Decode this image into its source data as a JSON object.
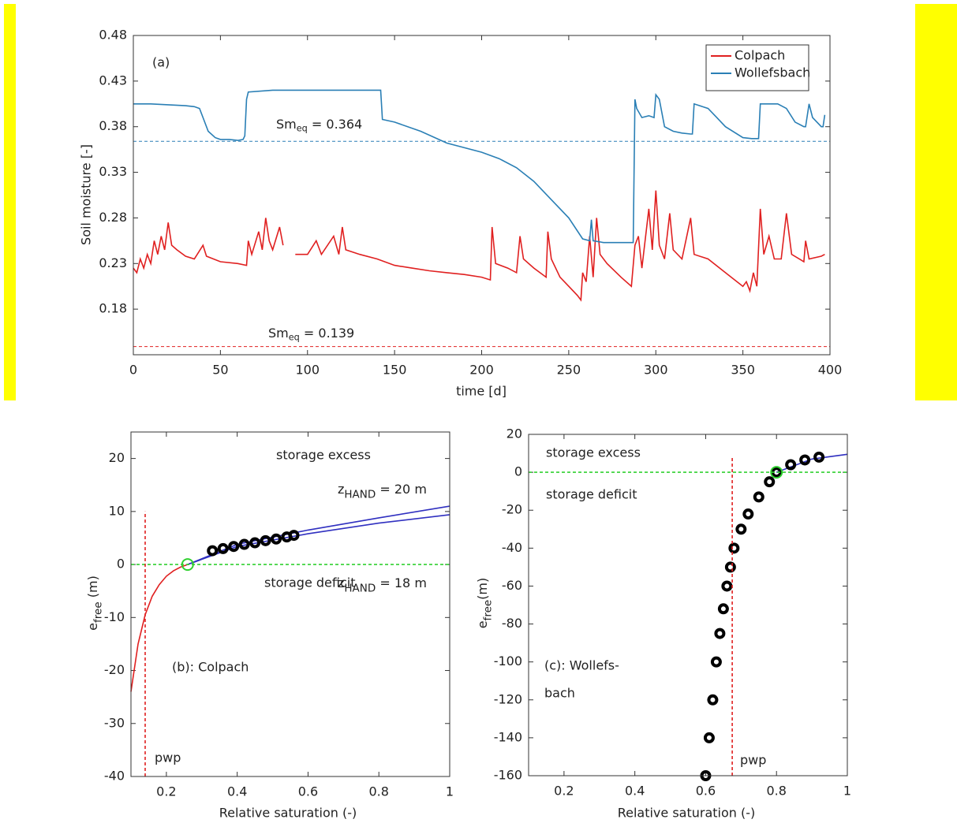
{
  "chart_data": [
    {
      "type": "line",
      "panel_label": "(a)",
      "x_label": "time [d]",
      "y_label": "Soil moisture [-]",
      "xlim": [
        0,
        400
      ],
      "xticks": [
        0,
        50,
        100,
        150,
        200,
        250,
        300,
        350,
        400
      ],
      "ylim": [
        0.13,
        0.48
      ],
      "yticks": [
        0.18,
        0.23,
        0.28,
        0.33,
        0.38,
        0.43,
        0.48
      ],
      "legend": "upper right",
      "series": [
        {
          "name": "Colpach",
          "color": "#e02020",
          "x": [
            0,
            2,
            4,
            6,
            8,
            10,
            12,
            14,
            16,
            18,
            20,
            22,
            25,
            30,
            35,
            40,
            42,
            50,
            60,
            65,
            66,
            68,
            72,
            74,
            76,
            78,
            80,
            84,
            86,
            89,
            93,
            100,
            105,
            108,
            115,
            118,
            120,
            122,
            130,
            140,
            150,
            160,
            170,
            180,
            190,
            200,
            205,
            206,
            208,
            215,
            220,
            222,
            224,
            230,
            237,
            238,
            240,
            245,
            250,
            255,
            257,
            258,
            260,
            262,
            264,
            266,
            268,
            272,
            280,
            286,
            288,
            290,
            292,
            296,
            298,
            300,
            302,
            305,
            308,
            310,
            315,
            320,
            322,
            330,
            340,
            350,
            352,
            354,
            356,
            358,
            360,
            362,
            365,
            368,
            372,
            375,
            378,
            385,
            386,
            388,
            395,
            397
          ],
          "values": [
            0.225,
            0.22,
            0.235,
            0.225,
            0.24,
            0.23,
            0.255,
            0.24,
            0.26,
            0.245,
            0.275,
            0.25,
            0.245,
            0.238,
            0.235,
            0.25,
            0.238,
            0.232,
            0.23,
            0.228,
            0.255,
            0.24,
            0.265,
            0.245,
            0.28,
            0.255,
            0.245,
            0.27,
            0.25,
            null,
            0.24,
            0.24,
            0.255,
            0.24,
            0.26,
            0.24,
            0.27,
            0.245,
            0.24,
            0.235,
            0.228,
            0.225,
            0.222,
            0.22,
            0.218,
            0.215,
            0.212,
            0.27,
            0.23,
            0.225,
            0.22,
            0.26,
            0.235,
            0.225,
            0.215,
            0.265,
            0.235,
            0.215,
            0.205,
            0.195,
            0.19,
            0.22,
            0.21,
            0.26,
            0.215,
            0.28,
            0.24,
            0.23,
            0.215,
            0.205,
            0.25,
            0.26,
            0.225,
            0.29,
            0.245,
            0.31,
            0.25,
            0.235,
            0.285,
            0.245,
            0.235,
            0.28,
            0.24,
            0.235,
            0.22,
            0.205,
            0.21,
            0.2,
            0.22,
            0.205,
            0.29,
            0.24,
            0.26,
            0.235,
            0.235,
            0.285,
            0.24,
            0.232,
            0.255,
            0.235,
            0.238,
            0.24
          ]
        },
        {
          "name": "Wollefsbach",
          "color": "#2a7fb5",
          "x": [
            0,
            10,
            20,
            30,
            35,
            38,
            40,
            43,
            47,
            50,
            55,
            60,
            63,
            64,
            65,
            66,
            80,
            90,
            100,
            120,
            140,
            142,
            143,
            150,
            165,
            180,
            200,
            210,
            220,
            230,
            240,
            250,
            258,
            262,
            263,
            264,
            270,
            280,
            287,
            288,
            289,
            292,
            296,
            299,
            300,
            302,
            305,
            310,
            315,
            320,
            321,
            322,
            330,
            335,
            340,
            350,
            355,
            358,
            359,
            360,
            370,
            375,
            380,
            385,
            386,
            388,
            390,
            395,
            396,
            397
          ],
          "values": [
            0.405,
            0.405,
            0.404,
            0.403,
            0.402,
            0.4,
            0.39,
            0.375,
            0.368,
            0.366,
            0.366,
            0.365,
            0.366,
            0.37,
            0.41,
            0.418,
            0.42,
            0.42,
            0.42,
            0.42,
            0.42,
            0.42,
            0.388,
            0.385,
            0.375,
            0.362,
            0.352,
            0.345,
            0.335,
            0.32,
            0.3,
            0.28,
            0.257,
            0.255,
            0.278,
            0.255,
            0.253,
            0.253,
            0.253,
            0.41,
            0.4,
            0.39,
            0.392,
            0.39,
            0.415,
            0.41,
            0.38,
            0.375,
            0.373,
            0.372,
            0.372,
            0.405,
            0.4,
            0.39,
            0.38,
            0.368,
            0.367,
            0.367,
            0.367,
            0.405,
            0.405,
            0.4,
            0.385,
            0.38,
            0.38,
            0.405,
            0.39,
            0.38,
            0.38,
            0.393
          ]
        }
      ],
      "reference_lines": [
        {
          "value": 0.364,
          "color": "#2a7fb5",
          "label": {
            "main": "Sm",
            "sub": "eq",
            "tail": " = 0.364"
          }
        },
        {
          "value": 0.139,
          "color": "#e02020",
          "label": {
            "main": "Sm",
            "sub": "eq",
            "tail": " = 0.139"
          }
        }
      ]
    },
    {
      "type": "line",
      "x_label": "Relative saturation (-)",
      "y_label": {
        "main": "e",
        "sub": "free",
        "tail": " (m)"
      },
      "xlim": [
        0.1,
        1
      ],
      "xticks": [
        0.2,
        0.4,
        0.6,
        0.8,
        1
      ],
      "ylim": [
        -40,
        25
      ],
      "yticks": [
        -40,
        -30,
        -20,
        -10,
        0,
        10,
        20
      ],
      "series": [
        {
          "color": "#e02020",
          "x": [
            0.1,
            0.12,
            0.14,
            0.16,
            0.18,
            0.2,
            0.22,
            0.24,
            0.26
          ],
          "values": [
            -24,
            -15,
            -9.5,
            -6,
            -3.8,
            -2.2,
            -1.2,
            -0.5,
            0
          ]
        },
        {
          "color": "#3030c0",
          "x": [
            0.26,
            0.4,
            0.6,
            0.8,
            1
          ],
          "values": [
            0,
            3.8,
            6.5,
            8.8,
            11
          ]
        },
        {
          "color": "#3030c0",
          "x": [
            0.26,
            0.4,
            0.6,
            0.8,
            1
          ],
          "values": [
            0,
            3.4,
            5.8,
            7.8,
            9.4
          ]
        },
        {
          "color": "#000000",
          "markers": true,
          "x": [
            0.33,
            0.36,
            0.39,
            0.42,
            0.45,
            0.48,
            0.51,
            0.54,
            0.56
          ],
          "values": [
            2.6,
            3.0,
            3.4,
            3.8,
            4.1,
            4.5,
            4.8,
            5.2,
            5.5
          ]
        },
        {
          "color": "#30d030",
          "dashed": true,
          "x": [
            0.1,
            1
          ],
          "values": [
            0,
            0
          ]
        },
        {
          "color": "#e02020",
          "dashed": true,
          "x": [
            0.14,
            0.14
          ],
          "values": [
            -40,
            10
          ]
        },
        {
          "color": "#30d030",
          "markers": true,
          "x": [
            0.26
          ],
          "values": [
            0
          ]
        }
      ],
      "annotations": [
        {
          "text": "storage excess",
          "color": "#2a7fb5"
        },
        {
          "text": "storage deficit",
          "color": "#e02020"
        },
        {
          "text": {
            "main": "z",
            "sub": "HAND",
            "tail": " = 20 m"
          },
          "color": "#000000"
        },
        {
          "text": {
            "main": "z",
            "sub": "HAND",
            "tail": " = 18 m"
          },
          "color": "#000000"
        },
        {
          "text": "(b): Colpach",
          "color": "#000000"
        },
        {
          "text": "pwp",
          "color": "#000000"
        }
      ]
    },
    {
      "type": "line",
      "x_label": "Relative saturation (-)",
      "y_label": {
        "main": "e",
        "sub": "free",
        "tail": "(m)"
      },
      "xlim": [
        0.1,
        1
      ],
      "xticks": [
        0.2,
        0.4,
        0.6,
        0.8,
        1
      ],
      "ylim": [
        -160,
        20
      ],
      "yticks": [
        -160,
        -140,
        -120,
        -100,
        -80,
        -60,
        -40,
        -20,
        0,
        20
      ],
      "series": [
        {
          "color": "#3030c0",
          "x": [
            0.8,
            0.9,
            1
          ],
          "values": [
            0,
            7,
            9.5
          ]
        },
        {
          "color": "#000000",
          "markers": true,
          "x": [
            0.6,
            0.61,
            0.62,
            0.63,
            0.64,
            0.65,
            0.66,
            0.67,
            0.68,
            0.7,
            0.72,
            0.75,
            0.78,
            0.8,
            0.84,
            0.88,
            0.92
          ],
          "values": [
            -160,
            -140,
            -120,
            -100,
            -85,
            -72,
            -60,
            -50,
            -40,
            -30,
            -22,
            -13,
            -5,
            0,
            4,
            6.5,
            8
          ]
        },
        {
          "color": "#30d030",
          "dashed": true,
          "x": [
            0.1,
            1
          ],
          "values": [
            0,
            0
          ]
        },
        {
          "color": "#e02020",
          "dashed": true,
          "x": [
            0.675,
            0.675
          ],
          "values": [
            -160,
            8
          ]
        },
        {
          "color": "#30d030",
          "markers": true,
          "x": [
            0.8
          ],
          "values": [
            0
          ]
        }
      ],
      "annotations": [
        {
          "text": "storage excess",
          "color": "#2a7fb5"
        },
        {
          "text": "storage deficit",
          "color": "#e02020"
        },
        {
          "text": "(c): Wollefs-",
          "color": "#000000"
        },
        {
          "text": "bach",
          "color": "#000000"
        },
        {
          "text": "pwp",
          "color": "#000000"
        }
      ]
    }
  ]
}
